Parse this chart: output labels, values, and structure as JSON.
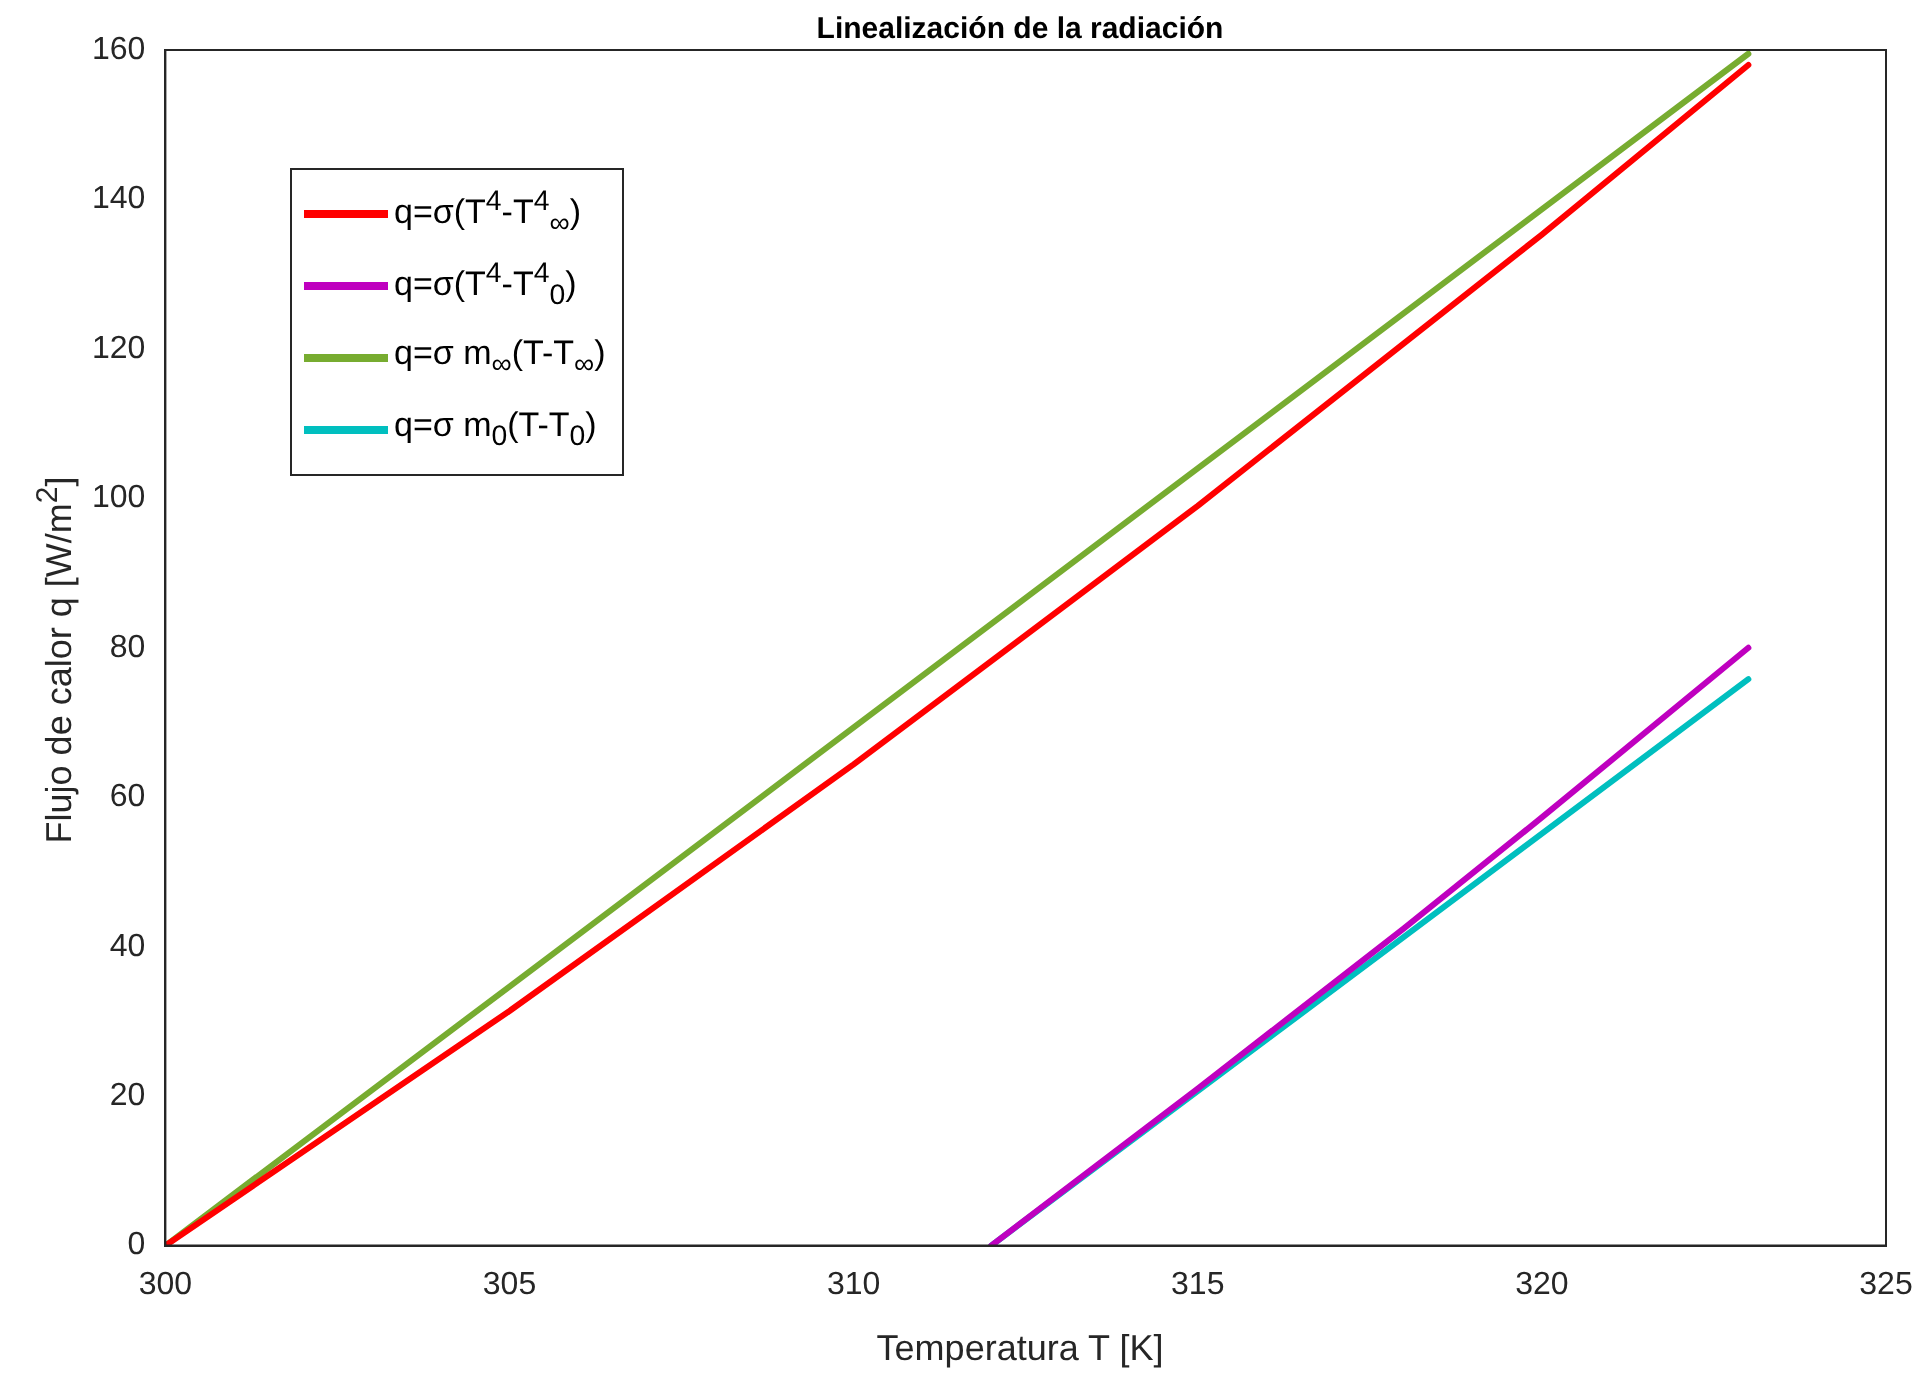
{
  "chart_data": {
    "type": "line",
    "title": "Linealización de la radiación",
    "xlabel": "Temperatura T [K]",
    "ylabel": "Flujo de calor q [W/m$^{2}$]",
    "xlim": [
      300,
      325
    ],
    "xticks": [
      300,
      305,
      310,
      315,
      320,
      325
    ],
    "ylim": [
      0,
      160
    ],
    "yticks": [
      0,
      20,
      40,
      60,
      80,
      100,
      120,
      140,
      160
    ],
    "grid": false,
    "legend": "top left",
    "marker": "none",
    "line_style": "solid",
    "series": [
      {
        "name": "q=σ(T$^{4}$-T$^{4}$$_{∞}$)",
        "color": "#ff0000",
        "x": [
          300,
          305,
          310,
          315,
          320,
          323
        ],
        "values": [
          0,
          31.4,
          64.4,
          99,
          135.3,
          158
        ]
      },
      {
        "name": "q=σ(T$^{4}$-T$^{4}$$_{0}$)",
        "color": "#bf00bf",
        "x": [
          312,
          315,
          318,
          320,
          323
        ],
        "values": [
          0,
          21,
          42.5,
          57.3,
          80
        ]
      },
      {
        "name": "q=σ m$_{∞}$(T-T$_{∞}$)",
        "color": "#77ac30",
        "x": [
          300,
          323
        ],
        "values": [
          0,
          159.5
        ]
      },
      {
        "name": "q=σ m$_{0}$(T-T$_{0}$)",
        "color": "#00bfbf",
        "x": [
          312,
          323
        ],
        "values": [
          0,
          75.8
        ]
      }
    ]
  }
}
